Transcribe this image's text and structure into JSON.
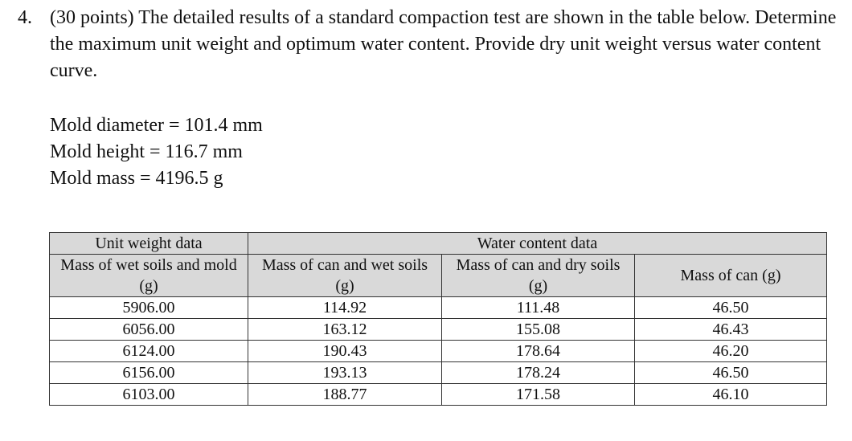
{
  "problem": {
    "number": "4.",
    "statement": "(30 points) The detailed results of a standard compaction test are shown in the table below. Determine the maximum unit weight and optimum water content. Provide dry unit weight versus water content curve."
  },
  "given": [
    "Mold diameter = 101.4 mm",
    "Mold height = 116.7 mm",
    "Mold mass = 4196.5 g"
  ],
  "table": {
    "group_headers": [
      "Unit weight data",
      "Water content data"
    ],
    "columns": [
      "Mass of wet soils and mold (g)",
      "Mass of can and wet soils (g)",
      "Mass of can and dry soils (g)",
      "Mass of can (g)"
    ],
    "rows": [
      [
        "5906.00",
        "114.92",
        "111.48",
        "46.50"
      ],
      [
        "6056.00",
        "163.12",
        "155.08",
        "46.43"
      ],
      [
        "6124.00",
        "190.43",
        "178.64",
        "46.20"
      ],
      [
        "6156.00",
        "193.13",
        "178.24",
        "46.50"
      ],
      [
        "6103.00",
        "188.77",
        "171.58",
        "46.10"
      ]
    ]
  }
}
